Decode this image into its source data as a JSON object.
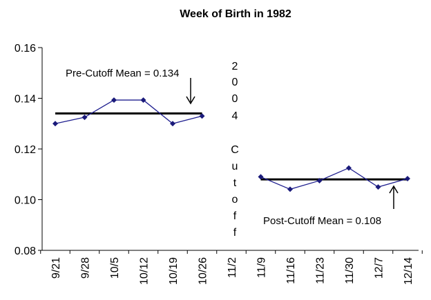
{
  "chart_data": {
    "type": "line",
    "title": "Week of Birth in 1982",
    "xlabel": "",
    "ylabel": "",
    "categories": [
      "9/21",
      "9/28",
      "10/5",
      "10/12",
      "10/19",
      "10/26",
      "11/2",
      "11/9",
      "11/16",
      "11/23",
      "11/30",
      "12/7",
      "12/14"
    ],
    "ylim": [
      0.08,
      0.16
    ],
    "yticks": [
      "0.08",
      "0.10",
      "0.12",
      "0.14",
      "0.16"
    ],
    "grid": false,
    "series": [
      {
        "values": [
          0.13,
          0.1325,
          0.1393,
          0.1393,
          0.13,
          0.133,
          null,
          0.109,
          0.1041,
          0.1075,
          0.1125,
          0.105,
          0.1083
        ],
        "color": "#1f1f8f"
      }
    ],
    "reference_lines": [
      {
        "value": 0.134,
        "from": "9/21",
        "to": "10/26",
        "color": "#000000"
      },
      {
        "value": 0.108,
        "from": "11/9",
        "to": "12/14",
        "color": "#000000"
      }
    ],
    "annotations": {
      "pre_cutoff": "Pre-Cutoff Mean = 0.134",
      "post_cutoff": "Post-Cutoff Mean = 0.108",
      "cutoff_letters": [
        "2",
        "0",
        "0",
        "4",
        "C",
        "u",
        "t",
        "o",
        "f",
        "f"
      ]
    }
  }
}
